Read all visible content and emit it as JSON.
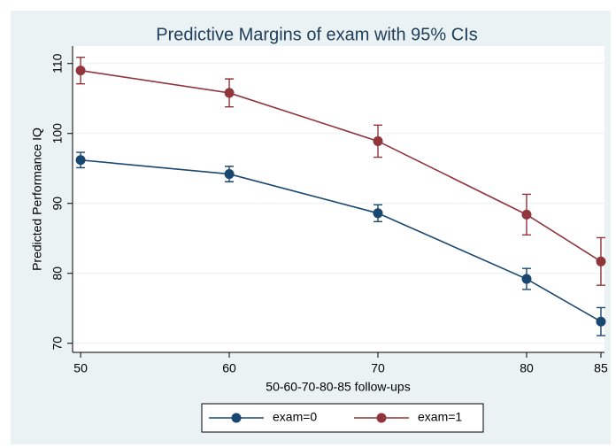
{
  "chart_data": {
    "type": "line",
    "title": "Predictive Margins of exam with 95% CIs",
    "xlabel": "50-60-70-80-85 follow-ups",
    "ylabel": "Predicted Performance IQ",
    "x": [
      50,
      60,
      70,
      80,
      85
    ],
    "xlim": [
      49.46,
      85.24
    ],
    "xticks": [
      50,
      60,
      70,
      80,
      85
    ],
    "ylim": [
      68.7,
      112.5
    ],
    "yticks": [
      70,
      80,
      90,
      100,
      110
    ],
    "grid": true,
    "legend": "bottom",
    "series": [
      {
        "name": "exam=0",
        "color": "#1a476f",
        "values": [
          96.2,
          94.2,
          88.6,
          79.2,
          73.1
        ],
        "errors": [
          1.1,
          1.1,
          1.2,
          1.5,
          2.0
        ]
      },
      {
        "name": "exam=1",
        "color": "#90353b",
        "values": [
          109.0,
          105.8,
          98.9,
          88.4,
          81.7
        ],
        "errors": [
          1.9,
          2.0,
          2.3,
          2.9,
          3.4
        ]
      }
    ]
  }
}
